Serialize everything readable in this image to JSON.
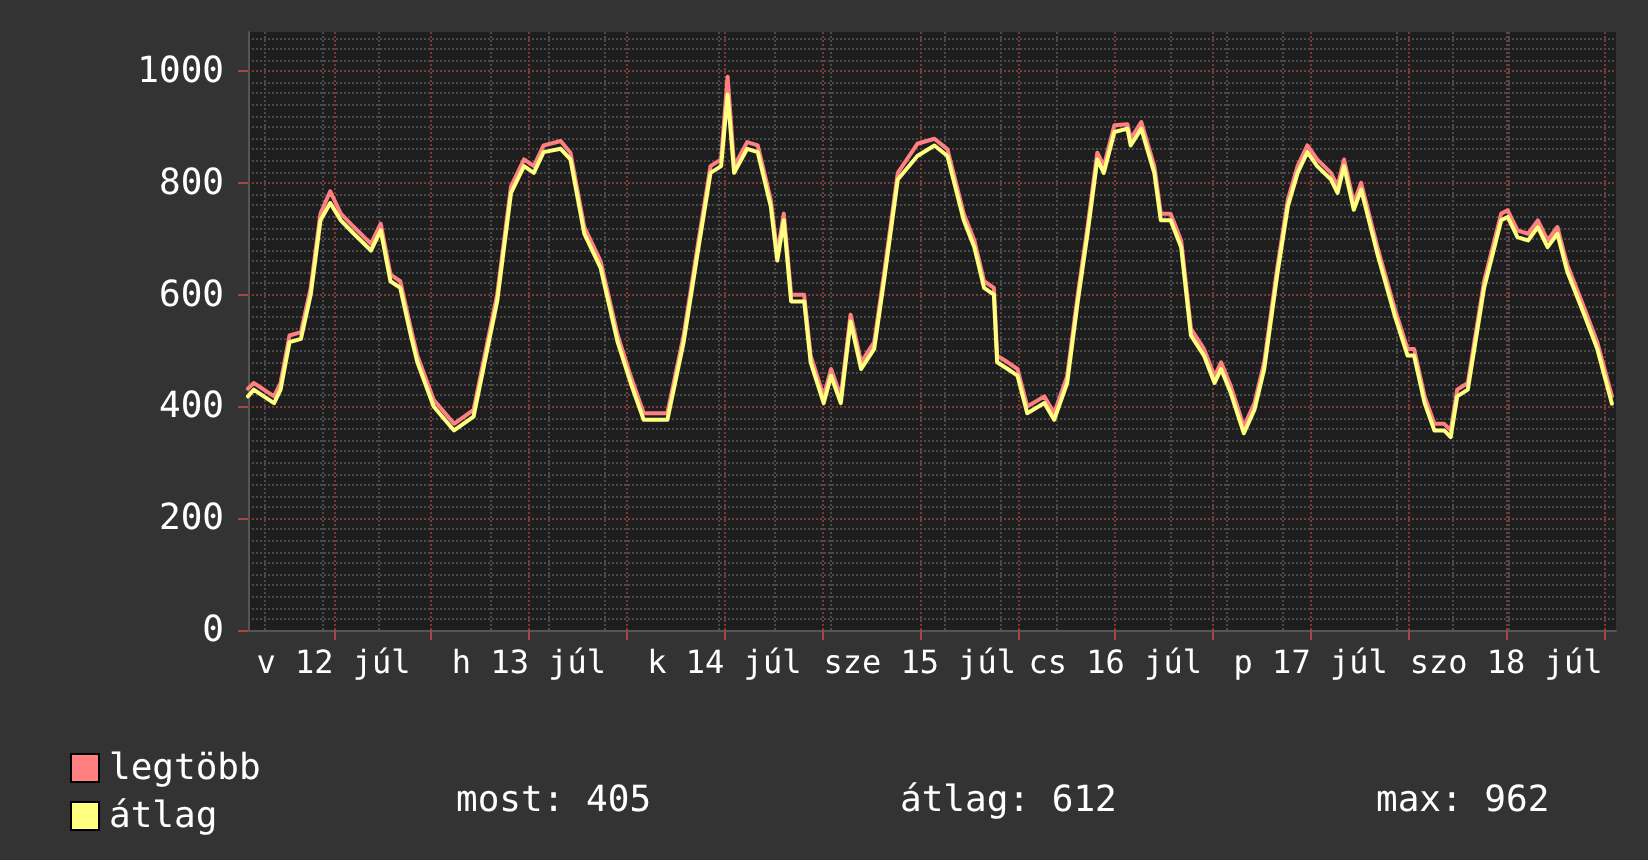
{
  "chart_data": {
    "type": "line",
    "x": [
      "--07-12T01:30",
      "--07-12T02:12",
      "--07-12T04:42",
      "--07-12T05:30",
      "--07-12T06:36",
      "--07-12T08:00",
      "--07-12T09:12",
      "--07-12T10:24",
      "--07-12T11:36",
      "--07-12T12:54",
      "--07-12T14:30",
      "--07-12T16:36",
      "--07-12T17:48",
      "--07-12T19:00",
      "--07-12T20:12",
      "--07-12T21:30",
      "--07-12T22:18",
      "--07-13T00:18",
      "--07-13T02:48",
      "--07-13T05:12",
      "--07-13T06:54",
      "--07-13T08:06",
      "--07-13T09:48",
      "--07-13T11:24",
      "--07-13T12:36",
      "--07-13T13:48",
      "--07-13T15:54",
      "--07-13T17:06",
      "--07-13T18:48",
      "--07-13T20:48",
      "--07-13T22:54",
      "--07-14T00:30",
      "--07-14T02:06",
      "--07-14T05:00",
      "--07-14T07:00",
      "--07-14T08:42",
      "--07-14T10:18",
      "--07-14T11:36",
      "--07-14T12:24",
      "--07-14T13:12",
      "--07-14T14:48",
      "--07-14T16:06",
      "--07-14T17:42",
      "--07-14T18:30",
      "--07-14T19:18",
      "--07-14T20:12",
      "--07-14T21:48",
      "--07-14T22:36",
      "--07-15T00:12",
      "--07-15T01:06",
      "--07-15T02:18",
      "--07-15T03:30",
      "--07-15T04:48",
      "--07-15T06:24",
      "--07-15T07:36",
      "--07-15T09:18",
      "--07-15T11:42",
      "--07-15T13:48",
      "--07-15T15:24",
      "--07-15T17:24",
      "--07-15T18:42",
      "--07-15T19:54",
      "--07-15T21:06",
      "--07-15T21:30",
      "--07-15T22:48",
      "--07-16T00:00",
      "--07-16T01:12",
      "--07-16T03:18",
      "--07-16T04:30",
      "--07-16T06:06",
      "--07-16T07:24",
      "--07-16T08:36",
      "--07-16T09:48",
      "--07-16T10:36",
      "--07-16T11:54",
      "--07-16T13:30",
      "--07-16T13:54",
      "--07-16T15:12",
      "--07-16T16:48",
      "--07-16T17:36",
      "--07-16T18:48",
      "--07-16T20:06",
      "--07-16T21:18",
      "--07-16T22:54",
      "--07-17T00:12",
      "--07-17T01:00",
      "--07-17T02:12",
      "--07-17T03:48",
      "--07-17T05:06",
      "--07-17T06:18",
      "--07-17T07:54",
      "--07-17T09:12",
      "--07-17T10:24",
      "--07-17T11:36",
      "--07-17T12:48",
      "--07-17T14:30",
      "--07-17T15:18",
      "--07-17T16:06",
      "--07-17T17:18",
      "--07-17T18:12",
      "--07-17T20:12",
      "--07-17T22:18",
      "--07-17T23:54",
      "--07-18T00:42",
      "--07-18T02:00",
      "--07-18T03:12",
      "--07-18T04:24",
      "--07-18T05:12",
      "--07-18T06:00",
      "--07-18T07:18",
      "--07-18T09:18",
      "--07-18T11:24",
      "--07-18T12:12",
      "--07-18T13:24",
      "--07-18T14:42",
      "--07-18T15:54",
      "--07-18T17:06",
      "--07-18T18:18",
      "--07-18T19:30",
      "--07-18T21:36",
      "--07-18T23:12",
      "--07-19T01:00"
    ],
    "series": [
      {
        "name": "legtöbb",
        "color": "#ff8080",
        "values": [
          432,
          442,
          418,
          442,
          527,
          533,
          612,
          745,
          785,
          745,
          721,
          691,
          727,
          636,
          624,
          539,
          491,
          412,
          369,
          394,
          515,
          600,
          794,
          842,
          830,
          867,
          875,
          854,
          721,
          660,
          527,
          454,
          388,
          388,
          527,
          685,
          830,
          842,
          990,
          830,
          873,
          867,
          770,
          673,
          745,
          600,
          600,
          491,
          418,
          467,
          418,
          564,
          479,
          515,
          636,
          818,
          870,
          879,
          860,
          745,
          697,
          624,
          612,
          491,
          479,
          467,
          400,
          418,
          388,
          454,
          600,
          721,
          854,
          830,
          903,
          905,
          879,
          909,
          830,
          745,
          745,
          697,
          539,
          503,
          454,
          479,
          436,
          364,
          406,
          479,
          648,
          770,
          830,
          867,
          842,
          818,
          794,
          842,
          764,
          800,
          685,
          576,
          503,
          503,
          418,
          369,
          369,
          357,
          430,
          442,
          624,
          745,
          751,
          715,
          709,
          733,
          697,
          721,
          654,
          576,
          515,
          418
        ]
      },
      {
        "name": "átlag",
        "color": "#ffff80",
        "values": [
          418,
          430,
          406,
          430,
          515,
          521,
          600,
          733,
          764,
          733,
          709,
          679,
          715,
          624,
          612,
          527,
          479,
          400,
          357,
          382,
          503,
          588,
          782,
          830,
          818,
          855,
          861,
          842,
          709,
          648,
          515,
          442,
          376,
          376,
          515,
          673,
          818,
          830,
          958,
          818,
          861,
          855,
          758,
          661,
          733,
          588,
          588,
          479,
          406,
          455,
          406,
          552,
          467,
          503,
          624,
          806,
          848,
          867,
          848,
          733,
          685,
          612,
          600,
          479,
          467,
          455,
          388,
          406,
          376,
          442,
          588,
          709,
          842,
          818,
          891,
          897,
          867,
          897,
          818,
          733,
          733,
          685,
          527,
          491,
          442,
          467,
          424,
          352,
          394,
          467,
          636,
          758,
          818,
          855,
          830,
          806,
          782,
          830,
          752,
          788,
          673,
          564,
          491,
          491,
          406,
          357,
          357,
          345,
          418,
          430,
          612,
          733,
          739,
          703,
          697,
          721,
          685,
          709,
          642,
          564,
          503,
          405
        ]
      }
    ],
    "xlim": [
      "--07-12T01:30",
      "--07-19T01:30"
    ],
    "xticks": [
      {
        "value": "--07-12T12:00",
        "label": "v 12 júl"
      },
      {
        "value": "--07-13T00:00",
        "label": null
      },
      {
        "value": "--07-13T12:00",
        "label": "h 13 júl"
      },
      {
        "value": "--07-14T00:00",
        "label": null
      },
      {
        "value": "--07-14T12:00",
        "label": "k 14 júl"
      },
      {
        "value": "--07-15T00:00",
        "label": null
      },
      {
        "value": "--07-15T12:00",
        "label": "sze 15 júl"
      },
      {
        "value": "--07-16T00:00",
        "label": null
      },
      {
        "value": "--07-16T12:00",
        "label": "cs 16 júl"
      },
      {
        "value": "--07-17T00:00",
        "label": null
      },
      {
        "value": "--07-17T12:00",
        "label": "p 17 júl"
      },
      {
        "value": "--07-18T00:00",
        "label": null
      },
      {
        "value": "--07-18T12:00",
        "label": "szo 18 júl"
      },
      {
        "value": "--07-19T00:00",
        "label": null
      }
    ],
    "ylim": [
      0,
      1070
    ],
    "yticks": [
      0,
      200,
      400,
      600,
      800,
      1000
    ],
    "grid": true,
    "legend": "bottom left",
    "marker": "none",
    "line_style": "solid",
    "annotations": [
      "most: 405",
      "átlag: 612",
      "max: 962"
    ]
  }
}
